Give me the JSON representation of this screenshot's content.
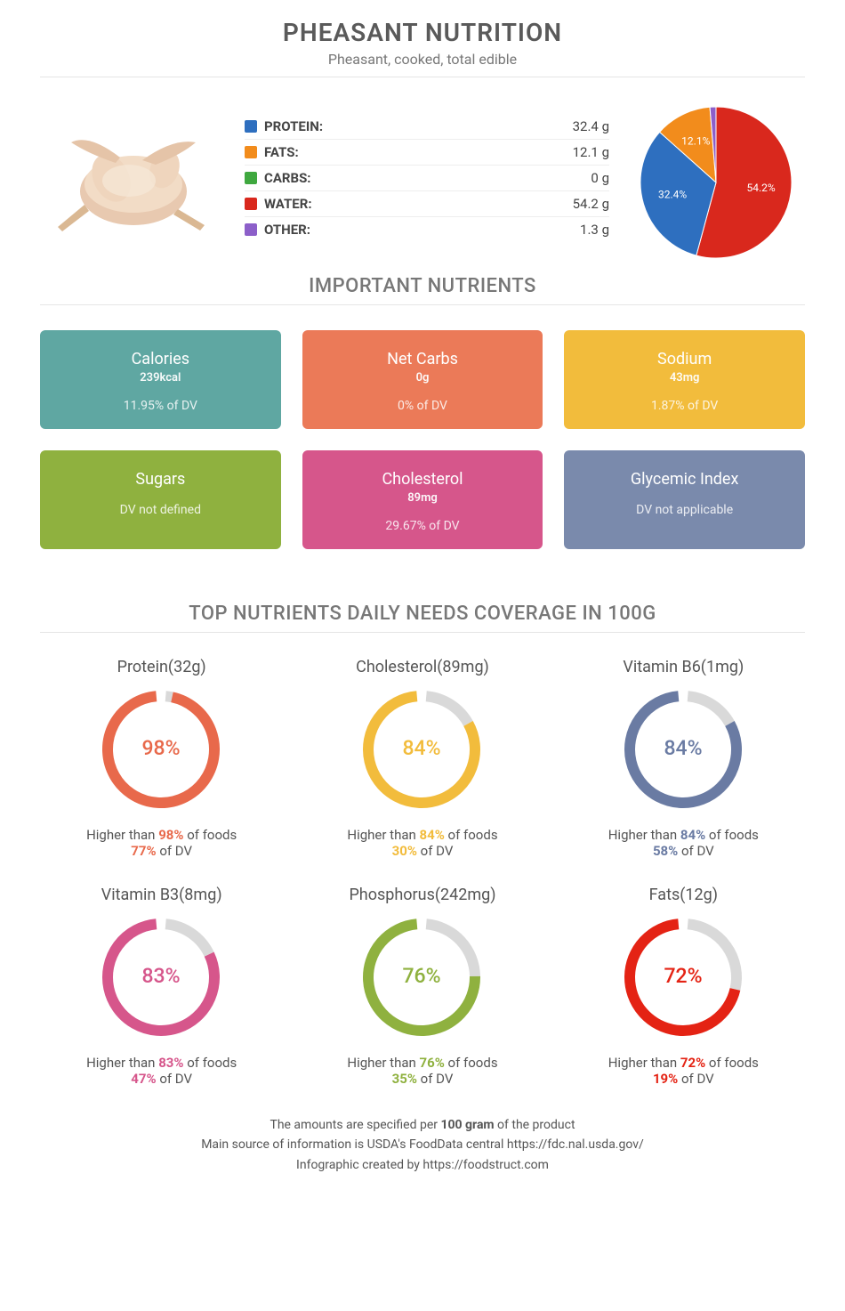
{
  "header": {
    "title": "PHEASANT NUTRITION",
    "subtitle": "Pheasant, cooked, total edible"
  },
  "macros": [
    {
      "label": "PROTEIN:",
      "value": "32.4 g",
      "color": "#2e6fbf"
    },
    {
      "label": "FATS:",
      "value": "12.1 g",
      "color": "#f28c1c"
    },
    {
      "label": "CARBS:",
      "value": "0 g",
      "color": "#3fa83f"
    },
    {
      "label": "WATER:",
      "value": "54.2 g",
      "color": "#d9281d"
    },
    {
      "label": "OTHER:",
      "value": "1.3 g",
      "color": "#8c5fc9"
    }
  ],
  "pie": {
    "slices": [
      {
        "pct": 54.2,
        "color": "#d9281d",
        "label": "54.2%"
      },
      {
        "pct": 32.4,
        "color": "#2e6fbf",
        "label": "32.4%"
      },
      {
        "pct": 12.1,
        "color": "#f28c1c",
        "label": "12.1%"
      },
      {
        "pct": 1.3,
        "color": "#8c5fc9",
        "label": ""
      }
    ]
  },
  "section_nutrients": "IMPORTANT NUTRIENTS",
  "cards": [
    {
      "name": "Calories",
      "value": "239kcal",
      "dv": "11.95% of DV",
      "color": "#5fa7a2"
    },
    {
      "name": "Net Carbs",
      "value": "0g",
      "dv": "0% of DV",
      "color": "#eb7a58"
    },
    {
      "name": "Sodium",
      "value": "43mg",
      "dv": "1.87% of DV",
      "color": "#f2bc3c"
    },
    {
      "name": "Sugars",
      "value": "",
      "dv": "DV not defined",
      "color": "#8fb13f"
    },
    {
      "name": "Cholesterol",
      "value": "89mg",
      "dv": "29.67% of DV",
      "color": "#d6568b"
    },
    {
      "name": "Glycemic Index",
      "value": "",
      "dv": "DV not applicable",
      "color": "#7a8aac"
    }
  ],
  "section_coverage": "TOP NUTRIENTS DAILY NEEDS COVERAGE IN 100G",
  "donuts": [
    {
      "title": "Protein(32g)",
      "pct": 98,
      "dv": "77%",
      "color": "#e8694b"
    },
    {
      "title": "Cholesterol(89mg)",
      "pct": 84,
      "dv": "30%",
      "color": "#f2bc3c"
    },
    {
      "title": "Vitamin B6(1mg)",
      "pct": 84,
      "dv": "58%",
      "color": "#6a7ba3"
    },
    {
      "title": "Vitamin B3(8mg)",
      "pct": 83,
      "dv": "47%",
      "color": "#d6568b"
    },
    {
      "title": "Phosphorus(242mg)",
      "pct": 76,
      "dv": "35%",
      "color": "#8fb13f"
    },
    {
      "title": "Fats(12g)",
      "pct": 72,
      "dv": "19%",
      "color": "#e42314"
    }
  ],
  "footer": {
    "line1a": "The amounts are specified per ",
    "line1b": "100 gram",
    "line1c": " of the product",
    "line2": "Main source of information is USDA's FoodData central https://fdc.nal.usda.gov/",
    "line3": "Infographic created by https://foodstruct.com"
  }
}
